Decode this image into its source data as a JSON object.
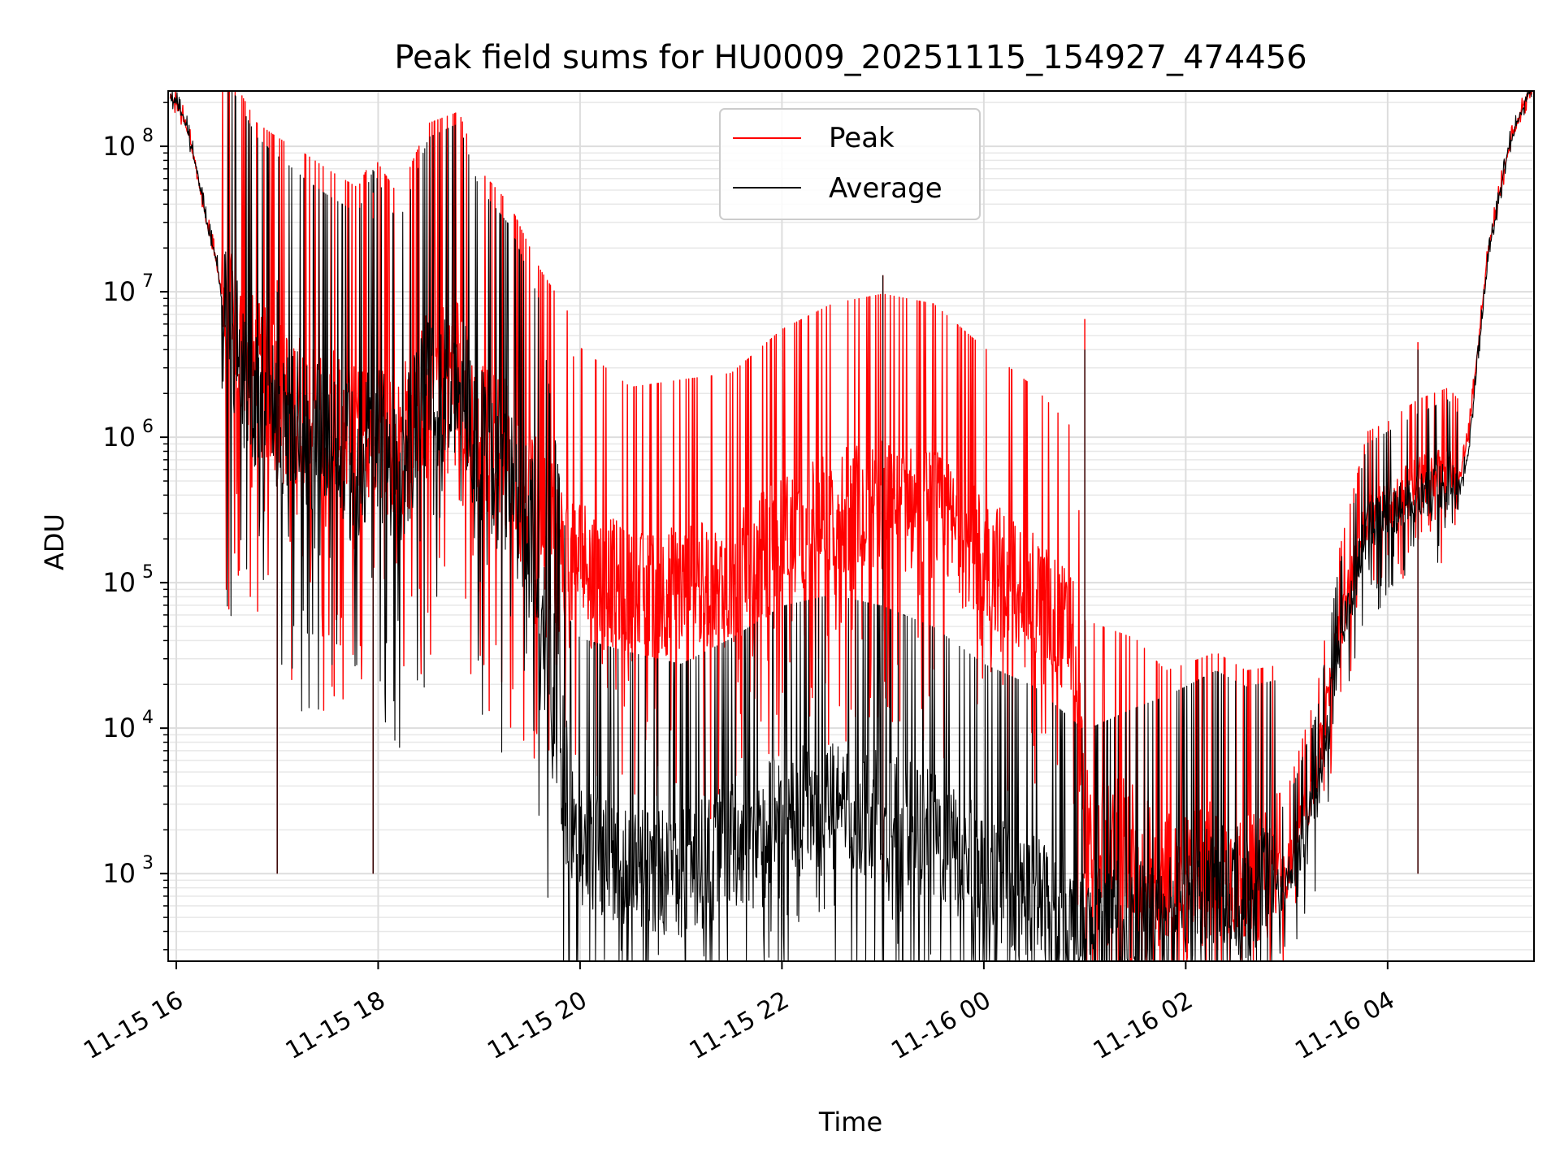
{
  "chart_data": {
    "type": "line",
    "title": "Peak field sums for HU0009_20251115_154927_474456",
    "xlabel": "Time",
    "ylabel": "ADU",
    "yscale": "log",
    "xlim_hours": [
      -0.08,
      13.45
    ],
    "ylim": [
      250,
      240000000
    ],
    "grid": true,
    "legend": {
      "location": "upper center"
    },
    "x_tick_hours": [
      0,
      2,
      4,
      6,
      8,
      10,
      12
    ],
    "x_tick_labels": [
      "11-15 16",
      "11-15 18",
      "11-15 20",
      "11-15 22",
      "11-16 00",
      "11-16 02",
      "11-16 04"
    ],
    "y_ticks": [
      {
        "base": "10",
        "exp": "3",
        "value": 1000
      },
      {
        "base": "10",
        "exp": "4",
        "value": 10000
      },
      {
        "base": "10",
        "exp": "5",
        "value": 100000
      },
      {
        "base": "10",
        "exp": "6",
        "value": 1000000
      },
      {
        "base": "10",
        "exp": "7",
        "value": 10000000
      },
      {
        "base": "10",
        "exp": "8",
        "value": 100000000
      }
    ],
    "series": [
      {
        "name": "Peak",
        "color": "#ff0000",
        "x_hours": [
          -0.1,
          0.0,
          0.1,
          0.2,
          0.3,
          0.4,
          0.5,
          0.8,
          1.0,
          1.3,
          1.5,
          1.8,
          1.95,
          2.2,
          2.5,
          2.8,
          3.0,
          3.3,
          3.6,
          3.9,
          4.0,
          4.5,
          5.0,
          5.5,
          6.0,
          6.5,
          7.0,
          7.5,
          8.0,
          8.5,
          8.9,
          9.0,
          9.5,
          9.8,
          10.0,
          10.3,
          10.6,
          11.0,
          11.3,
          11.5,
          11.8,
          12.0,
          12.3,
          12.6,
          12.7,
          12.8,
          13.0,
          13.2,
          13.4
        ],
        "y_adu": [
          230000000,
          200000000,
          140000000,
          70000000,
          30000000,
          16000000,
          6000000,
          2500000,
          2000000,
          1500000,
          1200000,
          900000,
          1500000,
          800000,
          2500000,
          3000000,
          1200000,
          700000,
          250000,
          120000,
          150000,
          80000,
          90000,
          100000,
          200000,
          300000,
          350000,
          300000,
          150000,
          80000,
          40000,
          2000,
          1500,
          900,
          1000,
          1200,
          900,
          1000,
          5000,
          40000,
          300000,
          350000,
          500000,
          600000,
          500000,
          1000000,
          20000000,
          100000000,
          240000000
        ]
      },
      {
        "name": "Average",
        "color": "#000000",
        "x_hours": [
          -0.1,
          0.0,
          0.1,
          0.2,
          0.3,
          0.4,
          0.5,
          0.8,
          1.0,
          1.3,
          1.5,
          1.8,
          1.95,
          2.2,
          2.5,
          2.8,
          3.0,
          3.3,
          3.6,
          3.9,
          4.0,
          4.5,
          5.0,
          5.5,
          6.0,
          6.5,
          7.0,
          7.5,
          8.0,
          8.5,
          8.9,
          9.0,
          9.5,
          9.8,
          10.0,
          10.3,
          10.6,
          11.0,
          11.3,
          11.5,
          11.8,
          12.0,
          12.3,
          12.6,
          12.7,
          12.8,
          13.0,
          13.2,
          13.4
        ],
        "y_adu": [
          230000000,
          200000000,
          140000000,
          70000000,
          30000000,
          16000000,
          5000000,
          2000000,
          1500000,
          1000000,
          800000,
          600000,
          1200000,
          500000,
          2000000,
          2500000,
          900000,
          500000,
          150000,
          2000,
          1500,
          1200,
          1000,
          1500,
          2500,
          3000,
          2500,
          1800,
          1000,
          700,
          400,
          350,
          500,
          600,
          700,
          900,
          700,
          800,
          3500,
          30000,
          250000,
          300000,
          400000,
          500000,
          400000,
          800000,
          18000000,
          100000000,
          240000000
        ]
      }
    ],
    "spikes": [
      {
        "x_hour": 1.0,
        "peak": 12000000,
        "avg": 10000000
      },
      {
        "x_hour": 1.95,
        "peak": 48000000,
        "avg": 32000000
      },
      {
        "x_hour": 7.0,
        "peak": 13000000,
        "avg": 13000000
      },
      {
        "x_hour": 9.0,
        "peak": 6500000,
        "avg": 4000000
      },
      {
        "x_hour": 12.3,
        "peak": 4500000,
        "avg": 4000000
      }
    ]
  },
  "legend": {
    "items": [
      {
        "label": "Peak",
        "color": "#ff0000"
      },
      {
        "label": "Average",
        "color": "#000000"
      }
    ]
  }
}
